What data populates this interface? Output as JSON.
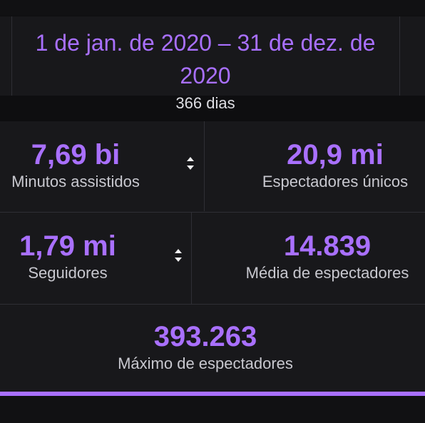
{
  "date_range": {
    "label": "1 de jan. de 2020 – 31 de dez. de 2020",
    "days": "366 dias"
  },
  "stats": {
    "minutes_watched": {
      "value": "7,69 bi",
      "label": "Minutos assistidos"
    },
    "unique_viewers": {
      "value": "20,9 mi",
      "label": "Espectadores únicos"
    },
    "followers": {
      "value": "1,79 mi",
      "label": "Seguidores"
    },
    "avg_viewers": {
      "value": "14.839",
      "label": "Média de espectadores"
    },
    "max_viewers": {
      "value": "393.263",
      "label": "Máximo de espectadores"
    }
  },
  "icons": {
    "sort_1": "sort-toggle-icon",
    "sort_2": "sort-toggle-icon"
  },
  "colors": {
    "accent": "#a970ff",
    "background": "#18181b",
    "divider": "#2f2f35",
    "label": "#c8c8cf"
  }
}
